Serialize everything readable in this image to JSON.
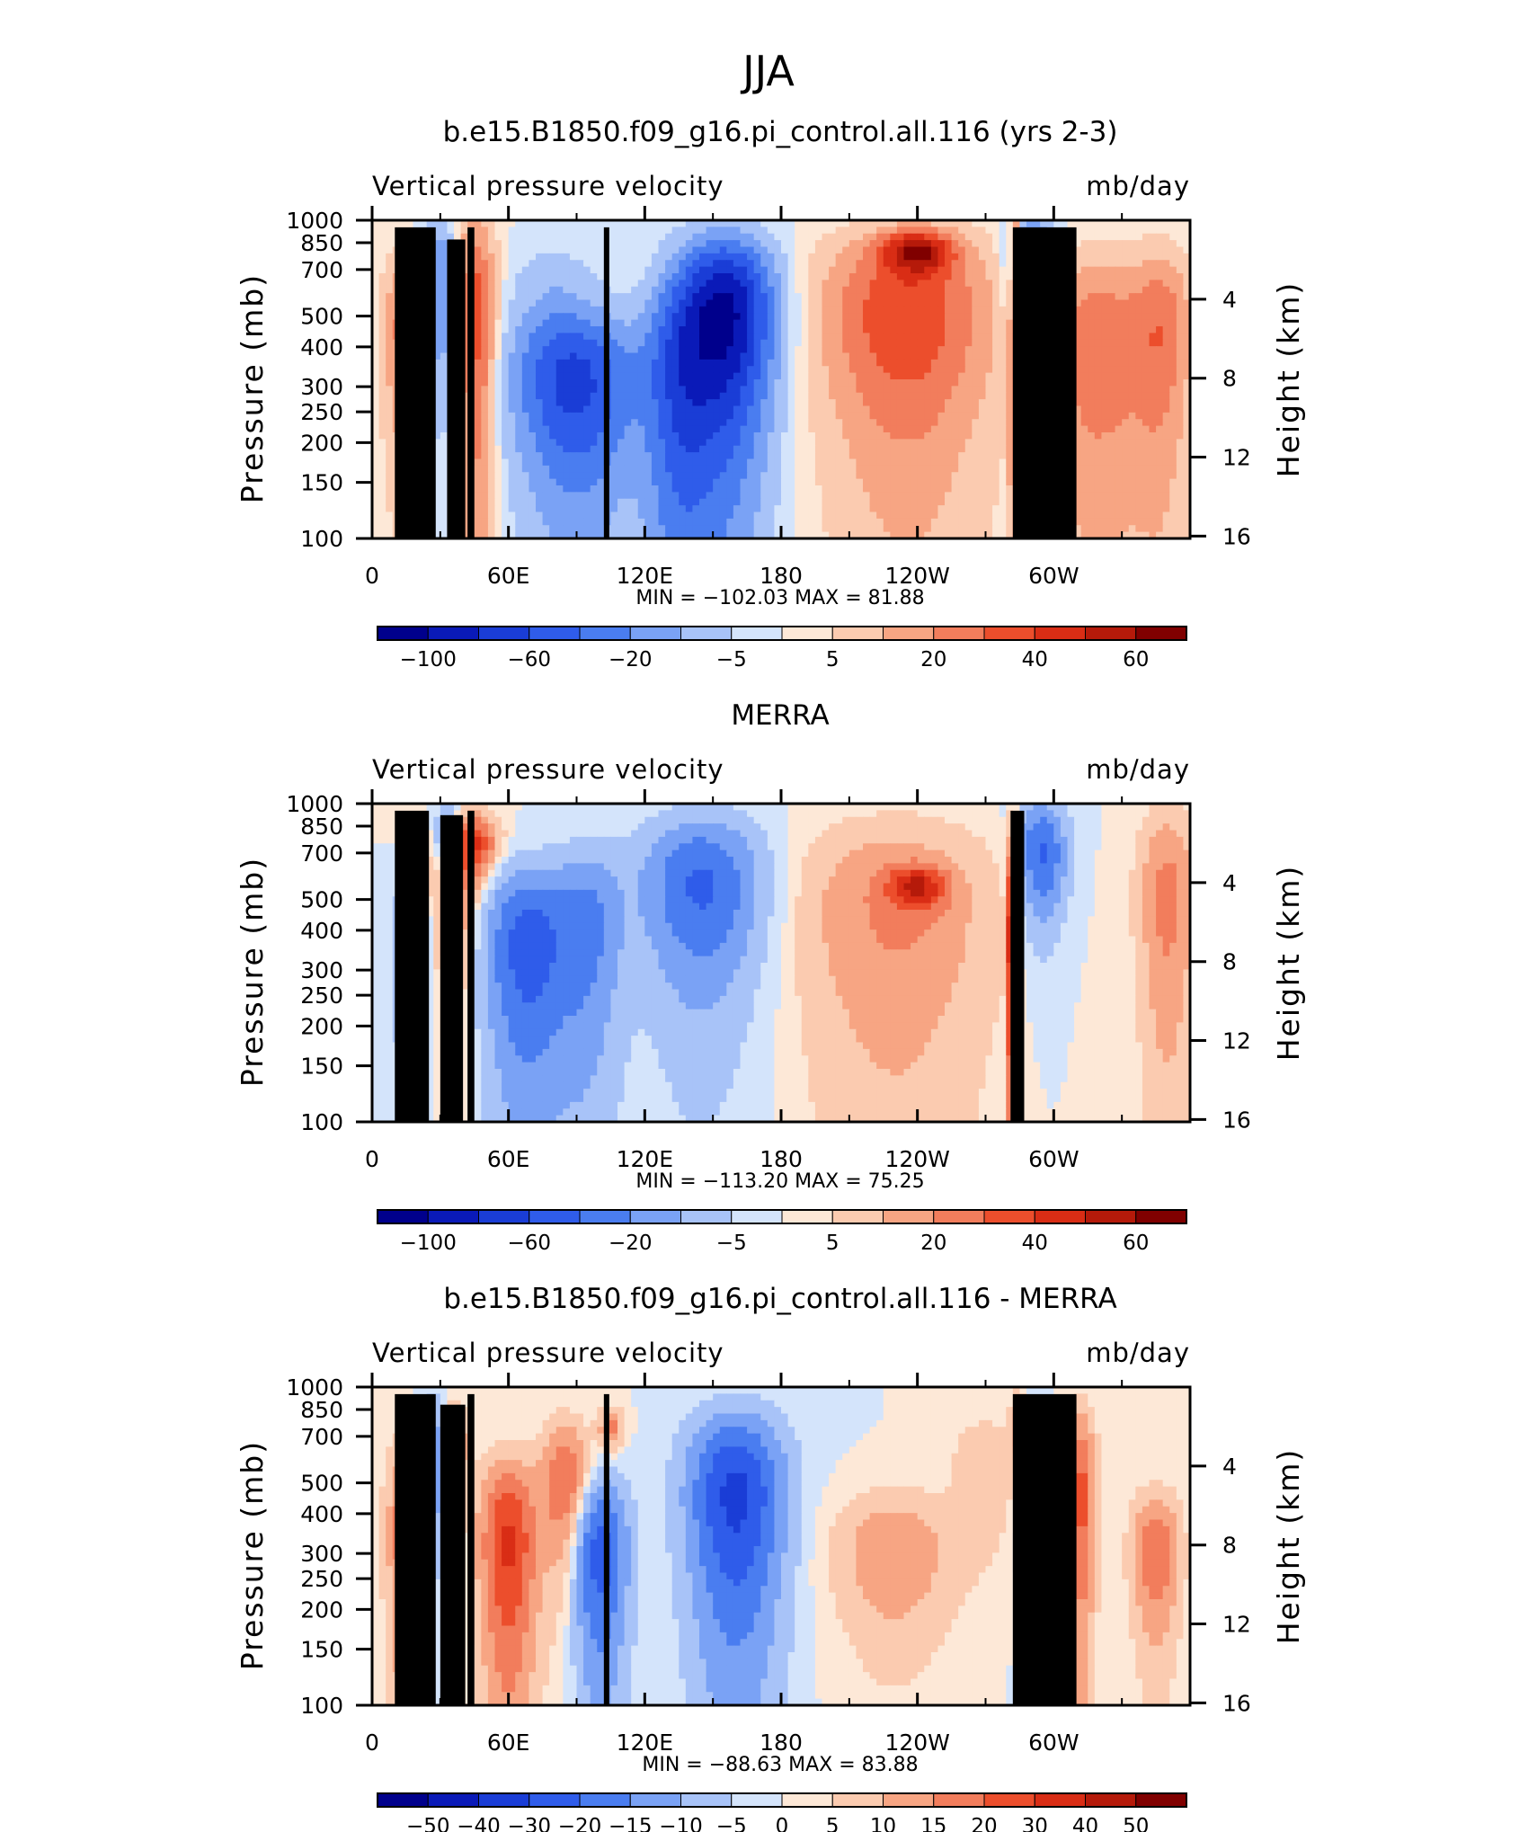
{
  "figure_title": "JJA",
  "chart_data": [
    {
      "type": "heatmap",
      "title": "b.e15.B1850.f09_g16.pi_control.all.116 (yrs 2-3)",
      "left_title": "Vertical pressure velocity",
      "right_title": "mb/day",
      "ylabel": "Pressure (mb)",
      "y2label": "Height (km)",
      "x_ticks": [
        "0",
        "60E",
        "120E",
        "180",
        "120W",
        "60W"
      ],
      "x_range": [
        0,
        360
      ],
      "y_ticks": [
        "100",
        "150",
        "200",
        "250",
        "300",
        "400",
        "500",
        "700",
        "850",
        "1000"
      ],
      "y_range": [
        1000,
        100
      ],
      "y2_ticks": [
        "16",
        "12",
        "8",
        "4"
      ],
      "stats": "MIN =  −102.03   MAX =   81.88",
      "min": -102.03,
      "max": 81.88,
      "colorbar_labels": [
        "−100",
        "−60",
        "−20",
        "−5",
        "5",
        "20",
        "40",
        "60"
      ],
      "colors": [
        "#00008c",
        "#0a1ab8",
        "#1a3dd6",
        "#2f5cea",
        "#4a7df0",
        "#7aa2f5",
        "#a8c3f8",
        "#d4e4fb",
        "#fde8d7",
        "#fbcbb0",
        "#f7a583",
        "#f27d5c",
        "#ec4e2c",
        "#d92d15",
        "#b51a0a",
        "#800000"
      ],
      "features": [
        {
          "lon": 15,
          "p": 450,
          "v": 25,
          "w": 10,
          "h": 300
        },
        {
          "lon": 30,
          "p": 600,
          "v": -30,
          "w": 8,
          "h": 350
        },
        {
          "lon": 45,
          "p": 500,
          "v": 38,
          "w": 9,
          "h": 450
        },
        {
          "lon": 90,
          "p": 300,
          "v": -55,
          "w": 25,
          "h": 180
        },
        {
          "lon": 80,
          "p": 550,
          "v": -12,
          "w": 20,
          "h": 260
        },
        {
          "lon": 155,
          "p": 500,
          "v": -90,
          "w": 20,
          "h": 330
        },
        {
          "lon": 135,
          "p": 300,
          "v": -40,
          "w": 15,
          "h": 280
        },
        {
          "lon": 235,
          "p": 500,
          "v": 40,
          "w": 35,
          "h": 360
        },
        {
          "lon": 240,
          "p": 800,
          "v": 55,
          "w": 15,
          "h": 120
        },
        {
          "lon": 283,
          "p": 500,
          "v": 70,
          "w": 2,
          "h": 500
        },
        {
          "lon": 290,
          "p": 650,
          "v": -50,
          "w": 9,
          "h": 330
        },
        {
          "lon": 320,
          "p": 400,
          "v": 28,
          "w": 25,
          "h": 330
        },
        {
          "lon": 348,
          "p": 450,
          "v": 22,
          "w": 12,
          "h": 330
        }
      ],
      "topography": [
        [
          10,
          950
        ],
        [
          28,
          950
        ],
        [
          33,
          870
        ],
        [
          41,
          870
        ],
        [
          42,
          950
        ],
        [
          45,
          950
        ],
        [
          102,
          950
        ],
        [
          104,
          940
        ],
        [
          282,
          950
        ],
        [
          310,
          950
        ]
      ]
    },
    {
      "type": "heatmap",
      "title": "MERRA",
      "left_title": "Vertical pressure velocity",
      "right_title": "mb/day",
      "ylabel": "Pressure (mb)",
      "y2label": "Height (km)",
      "x_ticks": [
        "0",
        "60E",
        "120E",
        "180",
        "120W",
        "60W"
      ],
      "x_range": [
        0,
        360
      ],
      "y_ticks": [
        "100",
        "150",
        "200",
        "250",
        "300",
        "400",
        "500",
        "700",
        "850",
        "1000"
      ],
      "y_range": [
        1000,
        100
      ],
      "y2_ticks": [
        "16",
        "12",
        "8",
        "4"
      ],
      "stats": "MIN =  −113.20   MAX =   75.25",
      "min": -113.2,
      "max": 75.25,
      "colorbar_labels": [
        "−100",
        "−60",
        "−20",
        "−5",
        "5",
        "20",
        "40",
        "60"
      ],
      "colors": [
        "#00008c",
        "#0a1ab8",
        "#1a3dd6",
        "#2f5cea",
        "#4a7df0",
        "#7aa2f5",
        "#a8c3f8",
        "#d4e4fb",
        "#fde8d7",
        "#fbcbb0",
        "#f7a583",
        "#f27d5c",
        "#ec4e2c",
        "#d92d15",
        "#b51a0a",
        "#800000"
      ],
      "features": [
        {
          "lon": 18,
          "p": 350,
          "v": -30,
          "w": 8,
          "h": 200
        },
        {
          "lon": 35,
          "p": 550,
          "v": 25,
          "w": 12,
          "h": 300
        },
        {
          "lon": 45,
          "p": 750,
          "v": 35,
          "w": 10,
          "h": 160
        },
        {
          "lon": 33,
          "p": 750,
          "v": -35,
          "w": 6,
          "h": 220
        },
        {
          "lon": 68,
          "p": 350,
          "v": -50,
          "w": 18,
          "h": 250
        },
        {
          "lon": 95,
          "p": 400,
          "v": -30,
          "w": 15,
          "h": 300
        },
        {
          "lon": 145,
          "p": 550,
          "v": -45,
          "w": 25,
          "h": 320
        },
        {
          "lon": 230,
          "p": 450,
          "v": 20,
          "w": 40,
          "h": 380
        },
        {
          "lon": 240,
          "p": 550,
          "v": 38,
          "w": 12,
          "h": 80
        },
        {
          "lon": 282,
          "p": 400,
          "v": 65,
          "w": 2,
          "h": 400
        },
        {
          "lon": 295,
          "p": 700,
          "v": -45,
          "w": 10,
          "h": 280
        },
        {
          "lon": 350,
          "p": 500,
          "v": 22,
          "w": 12,
          "h": 400
        }
      ],
      "topography": [
        [
          10,
          950
        ],
        [
          25,
          950
        ],
        [
          30,
          920
        ],
        [
          40,
          920
        ],
        [
          42,
          950
        ],
        [
          45,
          950
        ],
        [
          281,
          950
        ],
        [
          287,
          950
        ]
      ]
    },
    {
      "type": "heatmap",
      "title": "b.e15.B1850.f09_g16.pi_control.all.116 - MERRA",
      "left_title": "Vertical pressure velocity",
      "right_title": "mb/day",
      "ylabel": "Pressure (mb)",
      "y2label": "Height (km)",
      "x_ticks": [
        "0",
        "60E",
        "120E",
        "180",
        "120W",
        "60W"
      ],
      "x_range": [
        0,
        360
      ],
      "y_ticks": [
        "100",
        "150",
        "200",
        "250",
        "300",
        "400",
        "500",
        "700",
        "850",
        "1000"
      ],
      "y_range": [
        1000,
        100
      ],
      "y2_ticks": [
        "16",
        "12",
        "8",
        "4"
      ],
      "stats": "MIN =  −88.63   MAX =   83.88",
      "min": -88.63,
      "max": 83.88,
      "colorbar_labels": [
        "−50",
        "−40",
        "−30",
        "−20",
        "−15",
        "−10",
        "−5",
        "0",
        "5",
        "10",
        "15",
        "20",
        "30",
        "40",
        "50"
      ],
      "colors": [
        "#00008c",
        "#0a1ab8",
        "#1a3dd6",
        "#2f5cea",
        "#4a7df0",
        "#7aa2f5",
        "#a8c3f8",
        "#d4e4fb",
        "#fde8d7",
        "#fbcbb0",
        "#f7a583",
        "#f27d5c",
        "#ec4e2c",
        "#d92d15",
        "#b51a0a",
        "#800000"
      ],
      "features": [
        {
          "lon": 15,
          "p": 350,
          "v": 30,
          "w": 8,
          "h": 280
        },
        {
          "lon": 28,
          "p": 600,
          "v": -25,
          "w": 5,
          "h": 300
        },
        {
          "lon": 35,
          "p": 650,
          "v": 28,
          "w": 6,
          "h": 200
        },
        {
          "lon": 60,
          "p": 320,
          "v": 45,
          "w": 12,
          "h": 240
        },
        {
          "lon": 85,
          "p": 500,
          "v": 32,
          "w": 10,
          "h": 250
        },
        {
          "lon": 100,
          "p": 300,
          "v": -40,
          "w": 12,
          "h": 200
        },
        {
          "lon": 105,
          "p": 750,
          "v": 25,
          "w": 5,
          "h": 100
        },
        {
          "lon": 160,
          "p": 450,
          "v": -50,
          "w": 20,
          "h": 330
        },
        {
          "lon": 230,
          "p": 300,
          "v": 20,
          "w": 25,
          "h": 150
        },
        {
          "lon": 270,
          "p": 550,
          "v": 10,
          "w": 15,
          "h": 250
        },
        {
          "lon": 285,
          "p": 750,
          "v": 55,
          "w": 3,
          "h": 150
        },
        {
          "lon": 290,
          "p": 400,
          "v": -40,
          "w": 5,
          "h": 300
        },
        {
          "lon": 312,
          "p": 450,
          "v": 35,
          "w": 6,
          "h": 350
        },
        {
          "lon": 345,
          "p": 300,
          "v": 30,
          "w": 10,
          "h": 150
        }
      ],
      "topography": [
        [
          10,
          950
        ],
        [
          28,
          950
        ],
        [
          30,
          880
        ],
        [
          41,
          880
        ],
        [
          42,
          950
        ],
        [
          45,
          950
        ],
        [
          102,
          950
        ],
        [
          104,
          940
        ],
        [
          282,
          950
        ],
        [
          310,
          950
        ]
      ]
    }
  ]
}
